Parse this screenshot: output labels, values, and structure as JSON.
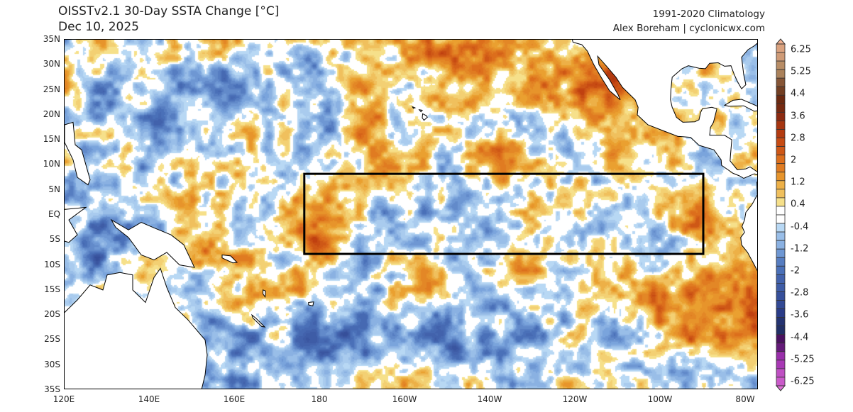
{
  "header": {
    "title": "OISSTv2.1 30-Day SSTA Change [°C]",
    "date": "Dec 10, 2025",
    "climatology": "1991-2020 Climatology",
    "credit": "Alex Boreham | cyclonicwx.com"
  },
  "map": {
    "projection": "equirectangular",
    "extent": {
      "lon": [
        "120E",
        "77W"
      ],
      "lat": [
        "35S",
        "35N"
      ]
    },
    "lat_labels": [
      "35N",
      "30N",
      "25N",
      "20N",
      "15N",
      "10N",
      "5N",
      "EQ",
      "5S",
      "10S",
      "15S",
      "20S",
      "25S",
      "30S",
      "35S"
    ],
    "lon_labels": [
      "120E",
      "140E",
      "160E",
      "180",
      "160W",
      "140W",
      "120W",
      "100W",
      "80W"
    ],
    "highlight_box": {
      "lon": [
        "176E",
        "90W"
      ],
      "lat": [
        "8N",
        "8S"
      ],
      "color": "#000000"
    },
    "land_color": "#ffffff",
    "coast_color": "#000000"
  },
  "colorbar": {
    "units": "°C",
    "range": [
      -6.25,
      6.25
    ],
    "tick_labels": [
      "6.25",
      "5.25",
      "4.4",
      "3.6",
      "2.8",
      "2",
      "1.2",
      "0.4",
      "-0.4",
      "-1.2",
      "-2",
      "-2.8",
      "-3.6",
      "-4.4",
      "-5.25",
      "-6.25"
    ],
    "extend": "both",
    "colors": {
      "max": "#f0b090",
      "warm": "#dc6e1c",
      "neutral": "#ffffff",
      "cool": "#7aa4dc",
      "deep_cool": "#2a3c88",
      "min": "#e070d8"
    }
  }
}
